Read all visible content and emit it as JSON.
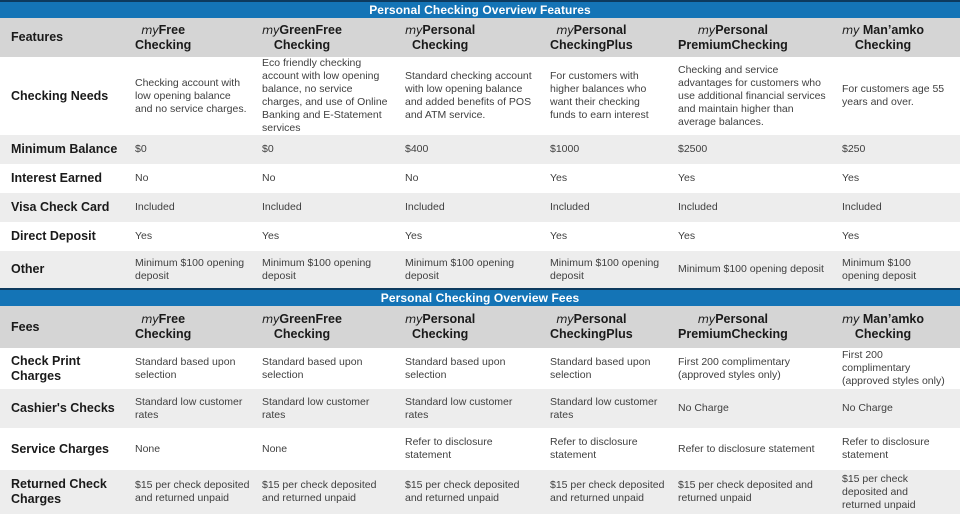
{
  "colors": {
    "bar_blue": "#1474b6",
    "bar_top_border": "#0d3a5e",
    "header_row_gray": "#d5d5d5",
    "alt_row_gray": "#ededed",
    "label_text": "#1a1a1a",
    "cell_text": "#3f3f3f"
  },
  "bars": {
    "features_title": "Personal Checking Overview Features",
    "fees_title": "Personal Checking Overview Fees"
  },
  "products": [
    {
      "prefix": "my",
      "name": "Free",
      "line2": "Checking"
    },
    {
      "prefix": "my",
      "name": "GreenFree",
      "line2": "Checking"
    },
    {
      "prefix": "my",
      "name": "Personal",
      "line2": "Checking"
    },
    {
      "prefix": "my",
      "name": "Personal",
      "line2": "CheckingPlus"
    },
    {
      "prefix": "my",
      "name": "Personal",
      "line2": "PremiumChecking"
    },
    {
      "prefix": "my",
      "name": " Man’amko",
      "line2": "Checking"
    }
  ],
  "features": {
    "corner": "Features",
    "rows": [
      {
        "label": "Checking Needs",
        "cells": [
          "Checking account with low opening balance and no service charges.",
          "Eco friendly checking account with low opening balance, no service charges, and use of Online Banking and E-Statement services",
          "Standard checking account with low opening balance and added benefits of POS and ATM service.",
          "For customers with higher balances who want their checking funds to earn interest",
          "Checking and service advantages for customers who use additional financial services and maintain higher than average balances.",
          "For customers age 55 years and over."
        ]
      },
      {
        "label": "Minimum Balance",
        "cells": [
          "$0",
          "$0",
          "$400",
          "$1000",
          "$2500",
          "$250"
        ]
      },
      {
        "label": "Interest Earned",
        "cells": [
          "No",
          "No",
          "No",
          "Yes",
          "Yes",
          "Yes"
        ]
      },
      {
        "label": "Visa Check Card",
        "cells": [
          "Included",
          "Included",
          "Included",
          "Included",
          "Included",
          "Included"
        ]
      },
      {
        "label": "Direct Deposit",
        "cells": [
          "Yes",
          "Yes",
          "Yes",
          "Yes",
          "Yes",
          "Yes"
        ]
      },
      {
        "label": "Other",
        "cells": [
          "Minimum $100 opening deposit",
          "Minimum $100 opening deposit",
          "Minimum $100 opening deposit",
          "Minimum $100 opening deposit",
          "Minimum $100 opening deposit",
          "Minimum $100 opening deposit"
        ]
      }
    ]
  },
  "fees": {
    "corner": "Fees",
    "rows": [
      {
        "label": "Check Print Charges",
        "cells": [
          "Standard based upon selection",
          "Standard based upon selection",
          "Standard based upon selection",
          "Standard based upon selection",
          "First 200 complimentary (approved styles only)",
          "First 200 complimentary (approved styles only)"
        ]
      },
      {
        "label": "Cashier's Checks",
        "cells": [
          "Standard low customer rates",
          "Standard low customer rates",
          "Standard low customer rates",
          "Standard low customer rates",
          "No Charge",
          "No Charge"
        ]
      },
      {
        "label": "Service Charges",
        "cells": [
          "None",
          "None",
          "Refer to disclosure statement",
          "Refer to disclosure statement",
          "Refer to disclosure statement",
          "Refer to disclosure statement"
        ]
      },
      {
        "label": "Returned Check Charges",
        "cells": [
          "$15 per check deposited and returned unpaid",
          "$15 per check deposited and returned unpaid",
          "$15 per check deposited and returned unpaid",
          "$15 per check deposited and returned unpaid",
          "$15 per check deposited and returned unpaid",
          "$15 per check deposited and returned unpaid"
        ]
      }
    ]
  }
}
